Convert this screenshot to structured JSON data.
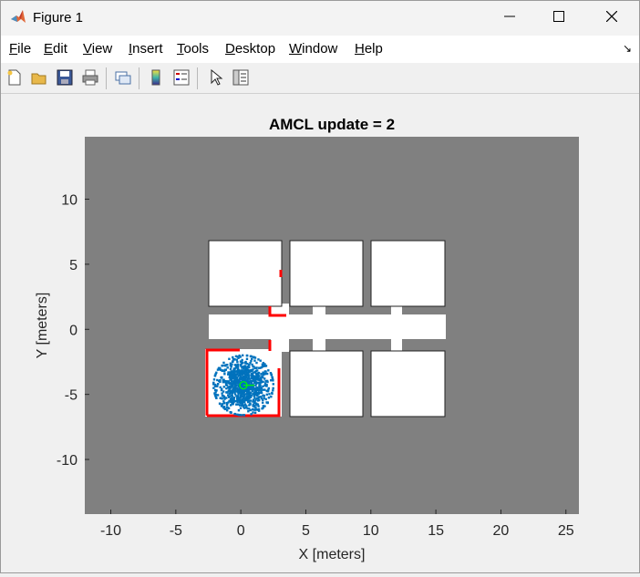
{
  "window": {
    "title": "Figure 1",
    "icon": "matlab-logo-icon"
  },
  "menu": {
    "items": [
      {
        "label": "File",
        "u": "F",
        "rest": "ile"
      },
      {
        "label": "Edit",
        "u": "E",
        "rest": "dit"
      },
      {
        "label": "View",
        "u": "V",
        "rest": "iew"
      },
      {
        "label": "Insert",
        "u": "I",
        "rest": "nsert"
      },
      {
        "label": "Tools",
        "u": "T",
        "rest": "ools"
      },
      {
        "label": "Desktop",
        "u": "D",
        "rest": "esktop"
      },
      {
        "label": "Window",
        "u": "W",
        "rest": "indow"
      },
      {
        "label": "Help",
        "u": "H",
        "rest": "elp"
      }
    ]
  },
  "toolbar": {
    "icons": [
      "new-figure-icon",
      "open-file-icon",
      "save-icon",
      "print-icon",
      "link-plot-icon",
      "insert-colorbar-icon",
      "insert-legend-icon",
      "edit-plot-icon",
      "property-inspector-icon"
    ]
  },
  "plot": {
    "title": "AMCL update = 2",
    "xlabel": "X [meters]",
    "ylabel": "Y [meters]",
    "xticks": [
      "-10",
      "-5",
      "0",
      "5",
      "10",
      "15",
      "20",
      "25"
    ],
    "yticks": [
      "10",
      "5",
      "0",
      "-5",
      "-10"
    ]
  },
  "chart_data": {
    "type": "scatter",
    "title": "AMCL update = 2",
    "xlabel": "X [meters]",
    "ylabel": "Y [meters]",
    "xlim": [
      -12,
      26
    ],
    "ylim": [
      -14.2,
      14.8
    ],
    "background": "occupancy-grid map",
    "colors": {
      "map_unknown": "#808080",
      "map_free": "#ffffff",
      "particles": "#0072bd",
      "scan": "#ff0000",
      "pose": "#00ff00"
    },
    "estimated_pose": {
      "x": 0.2,
      "y": -4.3
    },
    "particles": {
      "center": [
        0.2,
        -4.3
      ],
      "spread": 2.3
    }
  }
}
